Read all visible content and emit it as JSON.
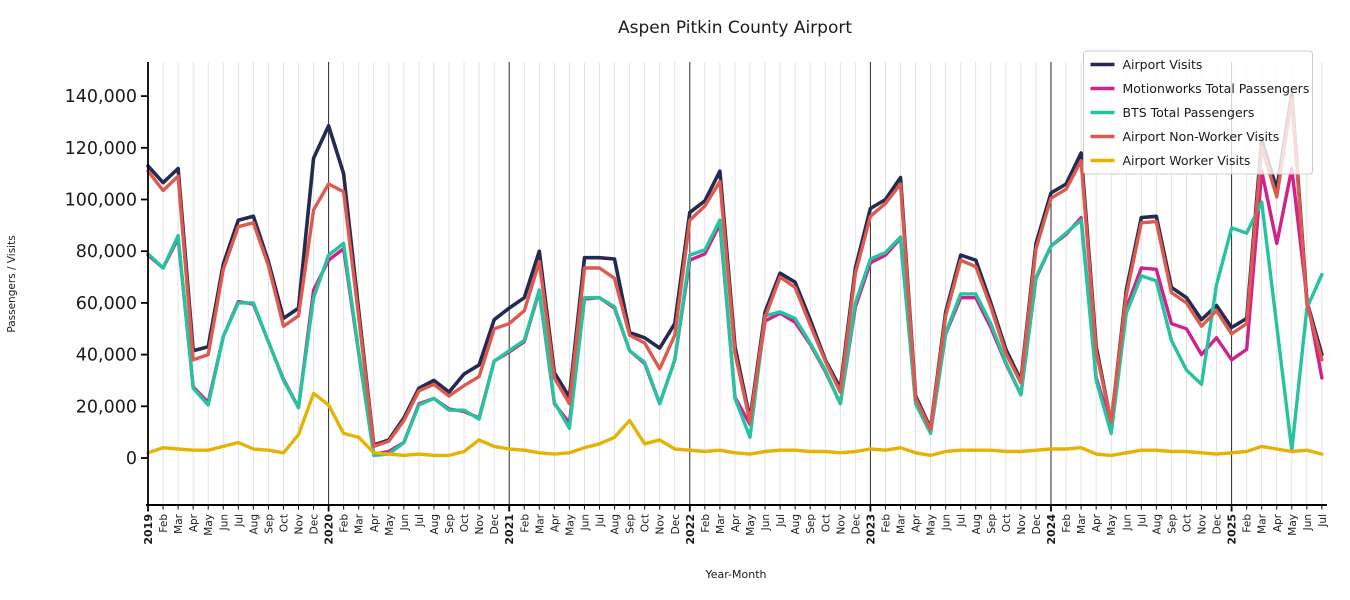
{
  "title": "Aspen Pitkin County Airport",
  "axes": {
    "x": {
      "label": "Year-Month",
      "tick_labels": [
        "2019",
        "Feb",
        "Mar",
        "Apr",
        "May",
        "Jun",
        "Jul",
        "Aug",
        "Sep",
        "Oct",
        "Nov",
        "Dec",
        "2020",
        "Feb",
        "Mar",
        "Apr",
        "May",
        "Jun",
        "Jul",
        "Aug",
        "Sep",
        "Oct",
        "Nov",
        "Dec",
        "2021",
        "Feb",
        "Mar",
        "Apr",
        "May",
        "Jun",
        "Jul",
        "Aug",
        "Sep",
        "Oct",
        "Nov",
        "Dec",
        "2022",
        "Feb",
        "Mar",
        "Apr",
        "May",
        "Jun",
        "Jul",
        "Aug",
        "Sep",
        "Oct",
        "Nov",
        "Dec",
        "2023",
        "Feb",
        "Mar",
        "Apr",
        "May",
        "Jun",
        "Jul",
        "Aug",
        "Sep",
        "Oct",
        "Nov",
        "Dec",
        "2024",
        "Feb",
        "Mar",
        "Apr",
        "May",
        "Jun",
        "Jul",
        "Aug",
        "Sep",
        "Oct",
        "Nov",
        "Dec",
        "2025",
        "Feb",
        "Mar",
        "Apr",
        "May",
        "Jun",
        "Jul"
      ]
    },
    "y": {
      "label": "Passengers / Visits",
      "ticks": [
        {
          "value": 0,
          "label": "0"
        },
        {
          "value": 20000,
          "label": "20,000"
        },
        {
          "value": 40000,
          "label": "40,000"
        },
        {
          "value": 60000,
          "label": "60,000"
        },
        {
          "value": 80000,
          "label": "80,000"
        },
        {
          "value": 100000,
          "label": "100,000"
        },
        {
          "value": 120000,
          "label": "120,000"
        },
        {
          "value": 140000,
          "label": "140,000"
        }
      ]
    }
  },
  "legend": {
    "entries": [
      {
        "label": "Airport Visits",
        "color": "#252a52"
      },
      {
        "label": "Motionworks Total Passengers",
        "color": "#d0218c"
      },
      {
        "label": "BTS Total Passengers",
        "color": "#26c3a0"
      },
      {
        "label": "Airport Non-Worker Visits",
        "color": "#dc5a4e"
      },
      {
        "label": "Airport Worker Visits",
        "color": "#e4b305"
      }
    ]
  },
  "style_colors": {
    "minor_grid": "#dcdcdc",
    "year_line": "#2a2a2a",
    "spine": "#000000",
    "text": "#1a1a1a",
    "legend_border": "#cccccc"
  },
  "chart_data": {
    "type": "line",
    "title": "Aspen Pitkin County Airport",
    "xlabel": "Year-Month",
    "ylabel": "Passengers / Visits",
    "ylim": [
      0,
      145000
    ],
    "grid": "vertical-monthly, solid black line at each January",
    "legend_position": "upper right, semi-transparent white box",
    "categories": [
      "2019-Jan",
      "2019-Feb",
      "2019-Mar",
      "2019-Apr",
      "2019-May",
      "2019-Jun",
      "2019-Jul",
      "2019-Aug",
      "2019-Sep",
      "2019-Oct",
      "2019-Nov",
      "2019-Dec",
      "2020-Jan",
      "2020-Feb",
      "2020-Mar",
      "2020-Apr",
      "2020-May",
      "2020-Jun",
      "2020-Jul",
      "2020-Aug",
      "2020-Sep",
      "2020-Oct",
      "2020-Nov",
      "2020-Dec",
      "2021-Jan",
      "2021-Feb",
      "2021-Mar",
      "2021-Apr",
      "2021-May",
      "2021-Jun",
      "2021-Jul",
      "2021-Aug",
      "2021-Sep",
      "2021-Oct",
      "2021-Nov",
      "2021-Dec",
      "2022-Jan",
      "2022-Feb",
      "2022-Mar",
      "2022-Apr",
      "2022-May",
      "2022-Jun",
      "2022-Jul",
      "2022-Aug",
      "2022-Sep",
      "2022-Oct",
      "2022-Nov",
      "2022-Dec",
      "2023-Jan",
      "2023-Feb",
      "2023-Mar",
      "2023-Apr",
      "2023-May",
      "2023-Jun",
      "2023-Jul",
      "2023-Aug",
      "2023-Sep",
      "2023-Oct",
      "2023-Nov",
      "2023-Dec",
      "2024-Jan",
      "2024-Feb",
      "2024-Mar",
      "2024-Apr",
      "2024-May",
      "2024-Jun",
      "2024-Jul",
      "2024-Aug",
      "2024-Sep",
      "2024-Oct",
      "2024-Nov",
      "2024-Dec",
      "2025-Jan",
      "2025-Feb",
      "2025-Mar",
      "2025-Apr",
      "2025-May",
      "2025-Jun",
      "2025-Jul"
    ],
    "series": [
      {
        "name": "Airport Visits",
        "color": "#252a52",
        "width": 3.6,
        "values": [
          113000,
          106500,
          112000,
          41500,
          43000,
          75000,
          92000,
          93500,
          76000,
          54000,
          58000,
          116000,
          128500,
          110000,
          57000,
          5000,
          7000,
          15500,
          27000,
          30000,
          25500,
          32500,
          36000,
          53500,
          58000,
          62000,
          80000,
          33000,
          23500,
          77500,
          77500,
          77000,
          48500,
          46500,
          42500,
          52000,
          95000,
          99500,
          111000,
          43000,
          15000,
          56500,
          71500,
          68000,
          53500,
          38000,
          27000,
          73500,
          96500,
          100000,
          108500,
          24000,
          11500,
          56500,
          78500,
          76500,
          60000,
          42000,
          30000,
          83000,
          102500,
          106000,
          118000,
          43000,
          13500,
          65000,
          93000,
          93500,
          66000,
          62000,
          53500,
          59000,
          50500,
          54000,
          123000,
          104000,
          141000,
          60500,
          40000
        ]
      },
      {
        "name": "Motionworks Total Passengers",
        "color": "#d0218c",
        "width": 3.4,
        "values": [
          78500,
          73500,
          85000,
          27500,
          21500,
          47000,
          60500,
          59500,
          45000,
          30500,
          19500,
          65000,
          76500,
          81000,
          40500,
          1500,
          2500,
          6000,
          21000,
          23000,
          19000,
          18000,
          15500,
          37500,
          41000,
          45000,
          64500,
          21000,
          13500,
          61500,
          62000,
          58000,
          41500,
          36500,
          21000,
          38000,
          76500,
          79000,
          90500,
          23500,
          13000,
          53000,
          56000,
          52500,
          44000,
          33500,
          21000,
          58500,
          75500,
          78500,
          85000,
          22000,
          10000,
          48000,
          62000,
          62000,
          50500,
          36500,
          24500,
          69500,
          82000,
          86500,
          93000,
          31000,
          12500,
          58000,
          73500,
          73000,
          52000,
          50000,
          40000,
          46500,
          38000,
          42000,
          111000,
          83000,
          112000,
          62000,
          31000
        ]
      },
      {
        "name": "BTS Total Passengers",
        "color": "#26c3a0",
        "width": 3.4,
        "values": [
          79000,
          73500,
          86000,
          27000,
          20500,
          47000,
          60000,
          60000,
          45000,
          30000,
          19500,
          62000,
          78500,
          83000,
          41000,
          1000,
          1500,
          6000,
          20500,
          23000,
          18500,
          18500,
          15000,
          37500,
          41500,
          45500,
          65000,
          21500,
          11500,
          62000,
          62000,
          58500,
          41500,
          37000,
          21000,
          38000,
          78500,
          80500,
          92000,
          23000,
          8000,
          55000,
          56500,
          54000,
          44500,
          34000,
          21000,
          60000,
          77000,
          79500,
          85500,
          21000,
          9500,
          48500,
          63500,
          63500,
          52000,
          37000,
          24500,
          70000,
          82000,
          87000,
          92000,
          30000,
          9500,
          56000,
          70500,
          68500,
          45500,
          34000,
          28500,
          67000,
          89000,
          87000,
          99000,
          51000,
          3000,
          58000,
          71000
        ]
      },
      {
        "name": "Airport Non-Worker Visits",
        "color": "#dc5a4e",
        "width": 3.4,
        "values": [
          111000,
          103500,
          109000,
          38000,
          40000,
          73000,
          89500,
          91000,
          74500,
          51000,
          55000,
          96000,
          106000,
          103000,
          54500,
          4500,
          6500,
          14500,
          26000,
          28500,
          24000,
          28000,
          31500,
          50000,
          52000,
          57000,
          76000,
          31000,
          21000,
          73500,
          73500,
          69500,
          47500,
          44500,
          34500,
          47500,
          92000,
          97500,
          107000,
          40500,
          14000,
          54500,
          70000,
          66000,
          51500,
          37500,
          25500,
          71500,
          93500,
          98500,
          106000,
          23000,
          11000,
          55000,
          76500,
          74000,
          58500,
          40500,
          29000,
          81000,
          100500,
          104000,
          115000,
          41000,
          14000,
          63000,
          91000,
          91500,
          64000,
          60000,
          51000,
          57000,
          48000,
          52000,
          120500,
          101000,
          139000,
          59500,
          38000
        ]
      },
      {
        "name": "Airport Worker Visits",
        "color": "#e4b305",
        "width": 3.4,
        "values": [
          2000,
          4000,
          3500,
          3000,
          3000,
          4500,
          6000,
          3500,
          3000,
          2000,
          9000,
          25000,
          20500,
          9500,
          8000,
          2000,
          1500,
          1000,
          1500,
          1000,
          1000,
          2500,
          7000,
          4500,
          3500,
          3000,
          2000,
          1500,
          2000,
          4000,
          5500,
          8000,
          14500,
          5500,
          7000,
          3500,
          3000,
          2500,
          3000,
          2000,
          1500,
          2500,
          3000,
          3000,
          2500,
          2500,
          2000,
          2500,
          3500,
          3000,
          4000,
          2000,
          1000,
          2500,
          3000,
          3000,
          3000,
          2500,
          2500,
          3000,
          3500,
          3500,
          4000,
          1500,
          1000,
          2000,
          3000,
          3000,
          2500,
          2500,
          2000,
          1500,
          2000,
          2500,
          4500,
          3500,
          2500,
          3000,
          1500
        ]
      }
    ]
  }
}
